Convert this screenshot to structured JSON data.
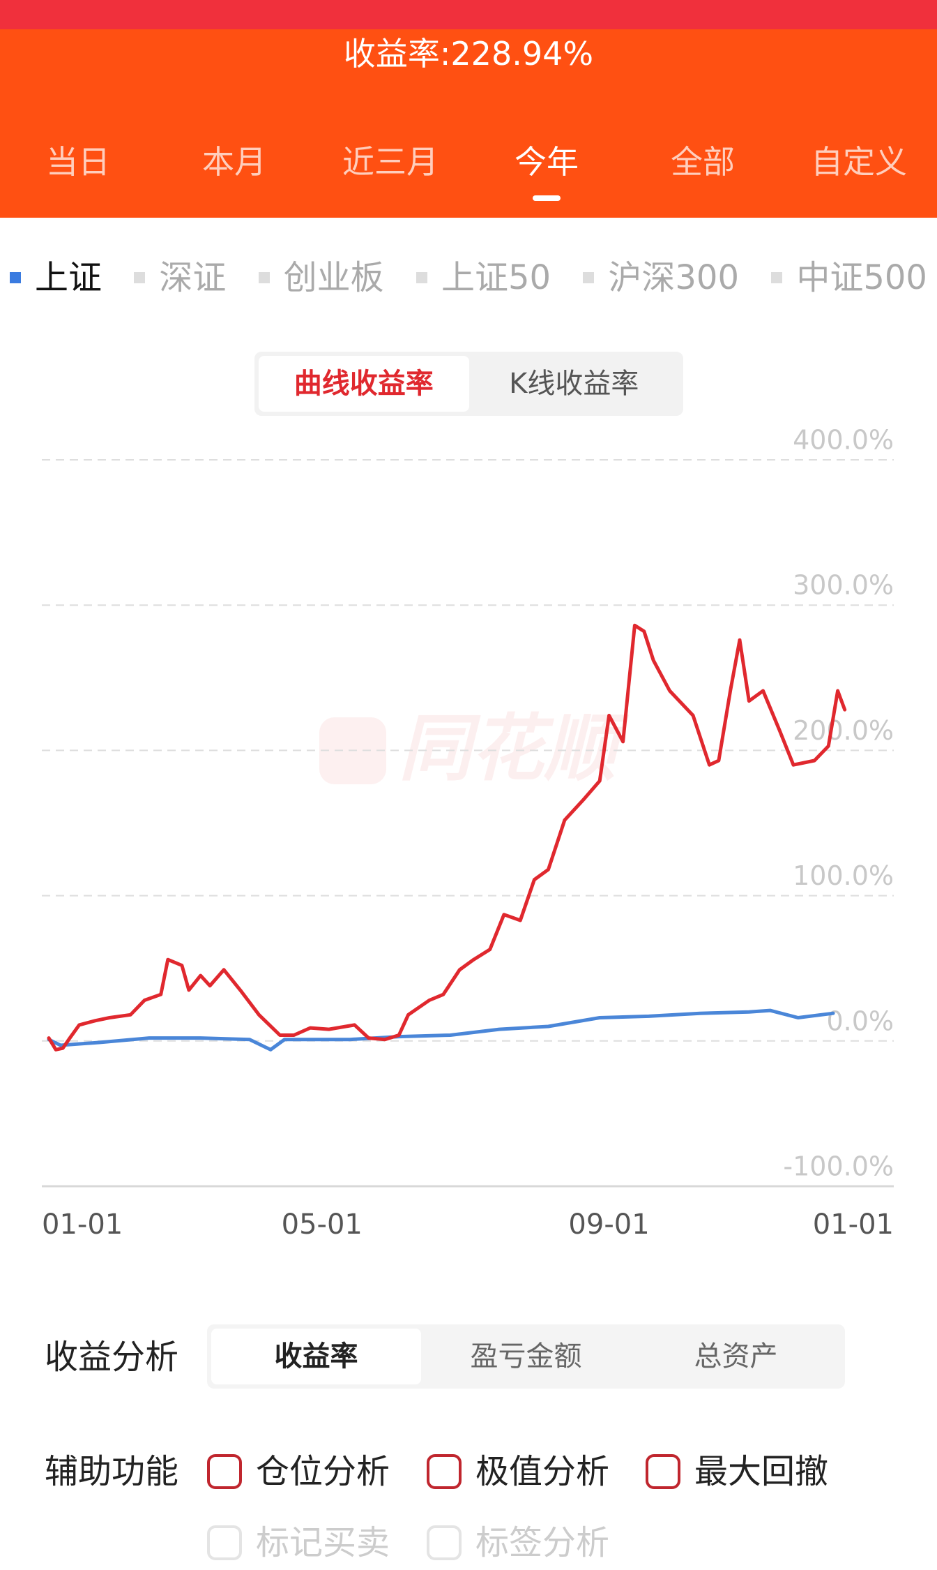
{
  "header": {
    "title": "收益率:228.94%"
  },
  "period_tabs": {
    "items": [
      "当日",
      "本月",
      "近三月",
      "今年",
      "全部",
      "自定义"
    ],
    "selected": 3
  },
  "index_options": {
    "items": [
      "上证",
      "深证",
      "创业板",
      "上证50",
      "沪深300",
      "中证500"
    ],
    "selected": 0
  },
  "chart_mode": {
    "items": [
      "曲线收益率",
      "K线收益率"
    ],
    "selected": 0
  },
  "watermark": "同花顺",
  "chart_data": {
    "type": "line",
    "xlim": [
      0,
      365
    ],
    "xticks": [
      {
        "value": 0,
        "label": "01-01"
      },
      {
        "value": 120,
        "label": "05-01"
      },
      {
        "value": 243,
        "label": "09-01"
      },
      {
        "value": 365,
        "label": "01-01"
      }
    ],
    "ylim": [
      -100,
      400
    ],
    "yticks": [
      {
        "value": 400,
        "label": "400.0%"
      },
      {
        "value": 300,
        "label": "300.0%"
      },
      {
        "value": 200,
        "label": "200.0%"
      },
      {
        "value": 100,
        "label": "100.0%"
      },
      {
        "value": 0,
        "label": "0.0%"
      },
      {
        "value": -100,
        "label": "-100.0%"
      }
    ],
    "grid": true,
    "series": [
      {
        "color": "#4a86d8",
        "x": [
          3,
          8,
          25,
          46,
          68,
          89,
          98,
          104,
          132,
          153,
          175,
          196,
          217,
          239,
          260,
          282,
          303,
          312,
          324,
          339
        ],
        "values": [
          1,
          -3,
          -1,
          2,
          2,
          1,
          -6,
          1,
          1,
          3,
          4,
          8,
          10,
          16,
          17,
          19,
          20,
          21,
          16,
          19
        ]
      },
      {
        "color": "#e0282e",
        "x": [
          3,
          6,
          9,
          12,
          16,
          23,
          29,
          38,
          44,
          51,
          54,
          60,
          63,
          68,
          72,
          78,
          85,
          93,
          102,
          108,
          115,
          123,
          134,
          140,
          147,
          153,
          157,
          166,
          172,
          179,
          185,
          192,
          198,
          205,
          211,
          217,
          224,
          232,
          239,
          243,
          249,
          254,
          258,
          262,
          269,
          279,
          286,
          290,
          295,
          299,
          303,
          309,
          316,
          322,
          331,
          337,
          341,
          344
        ],
        "values": [
          2,
          -6,
          -5,
          2,
          11,
          14,
          16,
          18,
          28,
          32,
          56,
          52,
          35,
          45,
          38,
          49,
          35,
          18,
          4,
          4,
          9,
          8,
          11,
          2,
          1,
          4,
          18,
          28,
          32,
          49,
          56,
          63,
          87,
          83,
          111,
          118,
          152,
          166,
          179,
          224,
          206,
          286,
          282,
          262,
          241,
          224,
          190,
          193,
          241,
          276,
          234,
          241,
          214,
          190,
          193,
          203,
          241,
          228
        ]
      }
    ]
  },
  "analysis": {
    "label": "收益分析",
    "items": [
      "收益率",
      "盈亏金额",
      "总资产"
    ],
    "selected": 0
  },
  "tools": {
    "label": "辅助功能",
    "items": [
      {
        "label": "仓位分析",
        "enabled": true
      },
      {
        "label": "极值分析",
        "enabled": true
      },
      {
        "label": "最大回撤",
        "enabled": true
      },
      {
        "label": "标记买卖",
        "enabled": false
      },
      {
        "label": "标签分析",
        "enabled": false
      }
    ]
  }
}
